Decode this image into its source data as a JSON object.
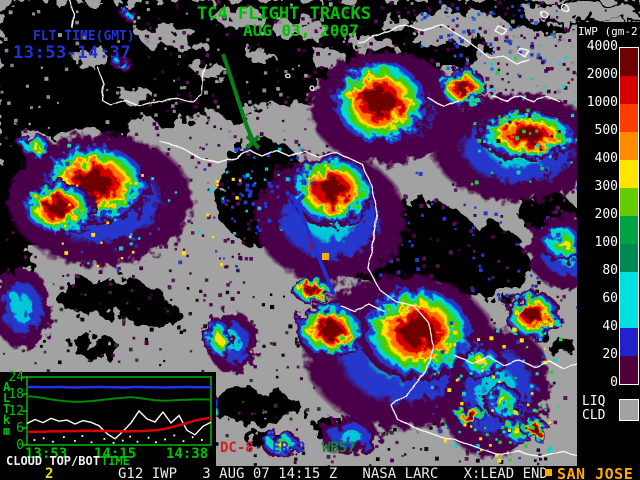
{
  "header": {
    "title_line1": "TC4 FLIGHT TRACKS",
    "title_line2": "AUG 03, 2007",
    "title_color": "#00c300",
    "flt_time_label": "FLT TIME(GMT)",
    "flt_time_value": "13:53-14:37",
    "flt_time_color": "#2430d8"
  },
  "colorbar": {
    "title": "IWP (gm-2)",
    "tick_labels": [
      "4000",
      "2000",
      "1000",
      "500",
      "400",
      "300",
      "200",
      "100",
      "80",
      "60",
      "40",
      "20",
      "0"
    ],
    "segment_colors": [
      "#6e0000",
      "#d40000",
      "#ff3c00",
      "#ff8c00",
      "#ffe400",
      "#66cc00",
      "#00a244",
      "#008855",
      "#00e0e0",
      "#00e0e0",
      "#2222cc",
      "#500038"
    ],
    "liq_label_1": "LIQ",
    "liq_label_2": "CLD",
    "liq_color": "#a2a2a2"
  },
  "aircraft_legend": [
    {
      "label": "DC-8",
      "color": "#d21f1f",
      "track_color": "#cc0000"
    },
    {
      "label": "ER-2",
      "color": "#2430d8",
      "track_color": "#1f2fd0"
    },
    {
      "label": "WB57",
      "color": "#0f8c2f",
      "track_color": "#0a7d18"
    }
  ],
  "map": {
    "city_label": "SAN JOSE",
    "city_color": "#ffac00"
  },
  "inset": {
    "caption": "CLOUD TOP/BOT",
    "xlabel": "TIME",
    "ylabel_chars": [
      "A",
      "L",
      "T",
      "k",
      "m"
    ],
    "axis_color": "#00c300"
  },
  "chart_data": {
    "type": "line",
    "title": "CLOUD TOP/BOT TIME",
    "xlabel": "TIME (GMT)",
    "ylabel": "ALT km",
    "x_tick_labels": [
      "13:53",
      "14:15",
      "14:38"
    ],
    "ytick_labels": [
      "24",
      "18",
      "12",
      "6",
      "0"
    ],
    "yticks": [
      0,
      6,
      12,
      18,
      24
    ],
    "ylim": [
      0,
      24
    ],
    "series": [
      {
        "name": "ER-2 altitude",
        "color": "#2233ee",
        "values": [
          20.4,
          20.5,
          20.4,
          20.4,
          20.5,
          20.4,
          20.3,
          20.4,
          20.4,
          20.5,
          20.4,
          20.4,
          20.3,
          20.4,
          20.5,
          20.4,
          20.4,
          20.3,
          20.4,
          20.4,
          20.5,
          20.4,
          20.4,
          20.4
        ]
      },
      {
        "name": "WB57 altitude",
        "color": "#008800",
        "values": [
          17.2,
          17.0,
          16.6,
          16.1,
          15.7,
          15.4,
          15.2,
          15.3,
          15.5,
          15.8,
          16.1,
          16.4,
          16.7,
          16.9,
          16.6,
          16.2,
          15.8,
          15.6,
          15.7,
          15.9,
          16.0,
          16.1,
          16.1,
          16.0
        ]
      },
      {
        "name": "cloud top",
        "color": "#ffffff",
        "values": [
          7.6,
          9.0,
          7.9,
          9.4,
          8.4,
          8.8,
          7.4,
          8.6,
          8.0,
          6.8,
          4.0,
          2.2,
          4.8,
          7.8,
          12.0,
          9.2,
          8.1,
          11.6,
          7.8,
          10.4,
          5.2,
          3.6,
          6.6,
          8.0
        ]
      },
      {
        "name": "DC-8 altitude",
        "color": "#dd0000",
        "values": [
          4.6,
          4.7,
          4.7,
          4.8,
          4.8,
          4.9,
          4.9,
          5.0,
          5.0,
          5.0,
          4.9,
          4.9,
          4.8,
          4.8,
          4.9,
          5.0,
          5.2,
          5.6,
          6.2,
          7.0,
          7.8,
          8.6,
          9.2,
          9.6
        ]
      }
    ],
    "scatter": {
      "name": "cloud bottom",
      "color": "#ffffff",
      "points": [
        [
          0.04,
          1.8
        ],
        [
          0.09,
          2.4
        ],
        [
          0.14,
          1.2
        ],
        [
          0.2,
          2.8
        ],
        [
          0.26,
          1.5
        ],
        [
          0.3,
          3.2
        ],
        [
          0.35,
          1.0
        ],
        [
          0.42,
          2.2
        ],
        [
          0.47,
          0.8
        ],
        [
          0.52,
          1.6
        ],
        [
          0.56,
          3.0
        ],
        [
          0.6,
          1.2
        ],
        [
          0.66,
          2.6
        ],
        [
          0.7,
          1.0
        ],
        [
          0.75,
          2.0
        ],
        [
          0.8,
          3.4
        ],
        [
          0.85,
          1.4
        ],
        [
          0.9,
          2.8
        ],
        [
          0.95,
          1.8
        ]
      ]
    }
  },
  "status_bar": {
    "frame": "2",
    "frame_color": "#e8e800",
    "text": "G12 IWP   3 AUG 07 14:15 Z   NASA LARC   X:LEAD END"
  }
}
